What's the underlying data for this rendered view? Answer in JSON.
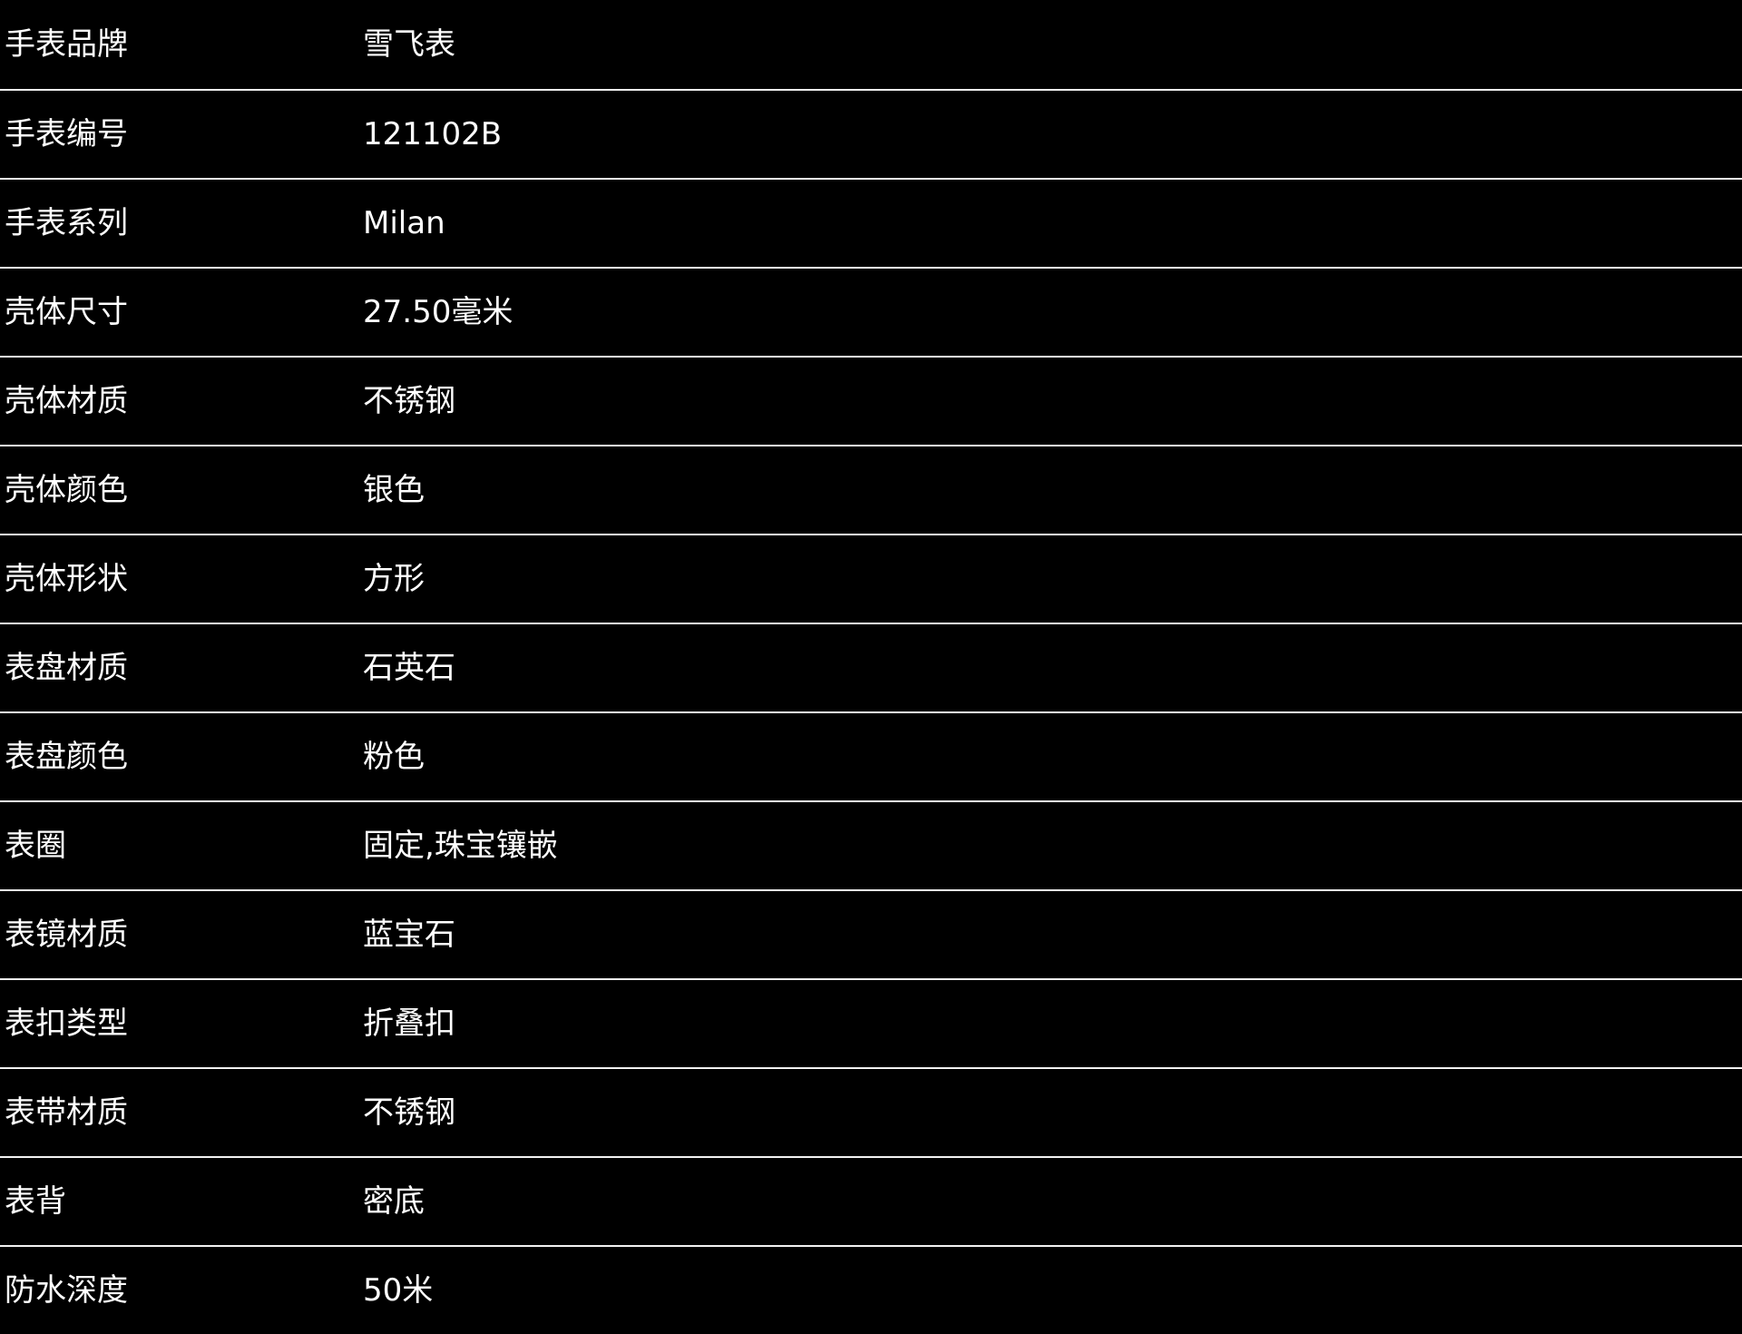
{
  "spec_table": {
    "rows": [
      {
        "label": "手表品牌",
        "value": "雪飞表"
      },
      {
        "label": "手表编号",
        "value": "121102B"
      },
      {
        "label": "手表系列",
        "value": "Milan"
      },
      {
        "label": "壳体尺寸",
        "value": "27.50毫米"
      },
      {
        "label": "壳体材质",
        "value": "不锈钢"
      },
      {
        "label": "壳体颜色",
        "value": "银色"
      },
      {
        "label": "壳体形状",
        "value": "方形"
      },
      {
        "label": "表盘材质",
        "value": "石英石"
      },
      {
        "label": "表盘颜色",
        "value": "粉色"
      },
      {
        "label": "表圈",
        "value": "固定,珠宝镶嵌"
      },
      {
        "label": "表镜材质",
        "value": "蓝宝石"
      },
      {
        "label": "表扣类型",
        "value": "折叠扣"
      },
      {
        "label": "表带材质",
        "value": "不锈钢"
      },
      {
        "label": "表背",
        "value": "密底"
      },
      {
        "label": "防水深度",
        "value": "50米"
      }
    ],
    "colors": {
      "background": "#000000",
      "text": "#ffffff",
      "divider": "#f2f2f2"
    }
  }
}
